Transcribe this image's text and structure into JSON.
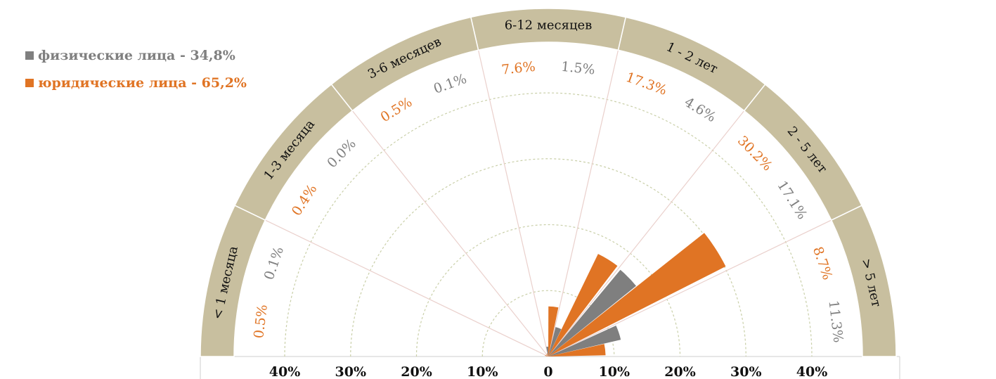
{
  "colors": {
    "individuals": "#7f7f7f",
    "legal": "#e07424",
    "band": "#c8bf9f",
    "spoke": "#ead0cc",
    "ring": "#c9cfa8"
  },
  "legend": [
    {
      "label": "физические лица - 34,8%",
      "color": "#7f7f7f"
    },
    {
      "label": "юридические лица - 65,2%",
      "color": "#e07424"
    }
  ],
  "chart_data": {
    "type": "polar-bar",
    "rlim": [
      0,
      40
    ],
    "ring_values": [
      10,
      20,
      30,
      40
    ],
    "x_ticks": [
      "40%",
      "30%",
      "20%",
      "10%",
      "0",
      "10%",
      "20%",
      "30%",
      "40%"
    ],
    "categories": [
      "< 1 месяца",
      "1-3 месяца",
      "3-6 месяцев",
      "6-12 месяцев",
      "1 - 2 лет",
      "2 - 5 лет",
      "> 5 лет"
    ],
    "series": [
      {
        "name": "физические лица",
        "color": "#7f7f7f",
        "values": [
          0.1,
          0.0,
          0.1,
          1.5,
          4.6,
          17.1,
          11.3
        ],
        "labels": [
          "0.1%",
          "0.0%",
          "0.1%",
          "1.5%",
          "4.6%",
          "17.1%",
          "11.3%"
        ]
      },
      {
        "name": "юридические лица",
        "color": "#e07424",
        "values": [
          0.5,
          0.4,
          0.5,
          7.6,
          17.3,
          30.2,
          8.7
        ],
        "labels": [
          "0.5%",
          "0.4%",
          "0.5%",
          "7.6%",
          "17.3%",
          "30.2%",
          "8.7%"
        ]
      }
    ]
  }
}
